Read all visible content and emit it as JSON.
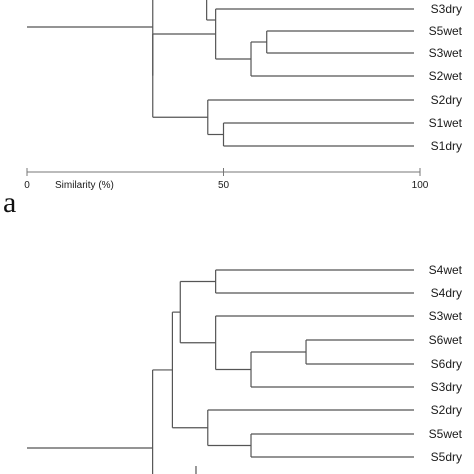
{
  "chart_data": [
    {
      "type": "dendrogram",
      "panel_label": "a",
      "xlabel": "Similarity (%)",
      "xlim": [
        0,
        100
      ],
      "xticks": [
        "0",
        "50",
        "100"
      ],
      "leaves": [
        "S3dry",
        "S5wet",
        "S3wet",
        "S2wet",
        "S2dry",
        "S1wet",
        "S1dry"
      ],
      "merges": [
        {
          "members": [
            "S5wet",
            "S3wet"
          ],
          "similarity": 61
        },
        {
          "members": [
            "S5wet",
            "S3wet",
            "S2wet"
          ],
          "similarity": 57
        },
        {
          "members": [
            "S1wet",
            "S1dry"
          ],
          "similarity": 50
        },
        {
          "members": [
            "S2dry",
            "S1wet",
            "S1dry"
          ],
          "similarity": 46
        },
        {
          "members": [
            "S3dry",
            "S5wet",
            "S3wet",
            "S2wet"
          ],
          "similarity": 48
        },
        {
          "members": [
            "S3dry",
            "S5wet",
            "S3wet",
            "S2wet",
            "S2dry",
            "S1wet",
            "S1dry"
          ],
          "similarity": 32
        }
      ]
    },
    {
      "type": "dendrogram",
      "panel_label": "",
      "leaves": [
        "S4wet",
        "S4dry",
        "S3wet",
        "S6wet",
        "S6dry",
        "S3dry",
        "S2dry",
        "S5wet",
        "S5dry"
      ],
      "merges": [
        {
          "members": [
            "S4wet",
            "S4dry"
          ],
          "similarity": 48
        },
        {
          "members": [
            "S6wet",
            "S6dry"
          ],
          "similarity": 71
        },
        {
          "members": [
            "S6wet",
            "S6dry",
            "S3dry"
          ],
          "similarity": 57
        },
        {
          "members": [
            "S3wet",
            "S6wet",
            "S6dry",
            "S3dry"
          ],
          "similarity": 48
        },
        {
          "members": [
            "S4wet",
            "S4dry",
            "S3wet",
            "S6wet",
            "S6dry",
            "S3dry"
          ],
          "similarity": 39
        },
        {
          "members": [
            "S5wet",
            "S5dry"
          ],
          "similarity": 57
        },
        {
          "members": [
            "S2dry",
            "S5wet",
            "S5dry"
          ],
          "similarity": 46
        },
        {
          "members": [
            "S4wet",
            "S4dry",
            "S3wet",
            "S6wet",
            "S6dry",
            "S3dry",
            "S2dry",
            "S5wet",
            "S5dry"
          ],
          "similarity": 37
        },
        {
          "members": [
            "root"
          ],
          "similarity": 34
        }
      ]
    }
  ]
}
